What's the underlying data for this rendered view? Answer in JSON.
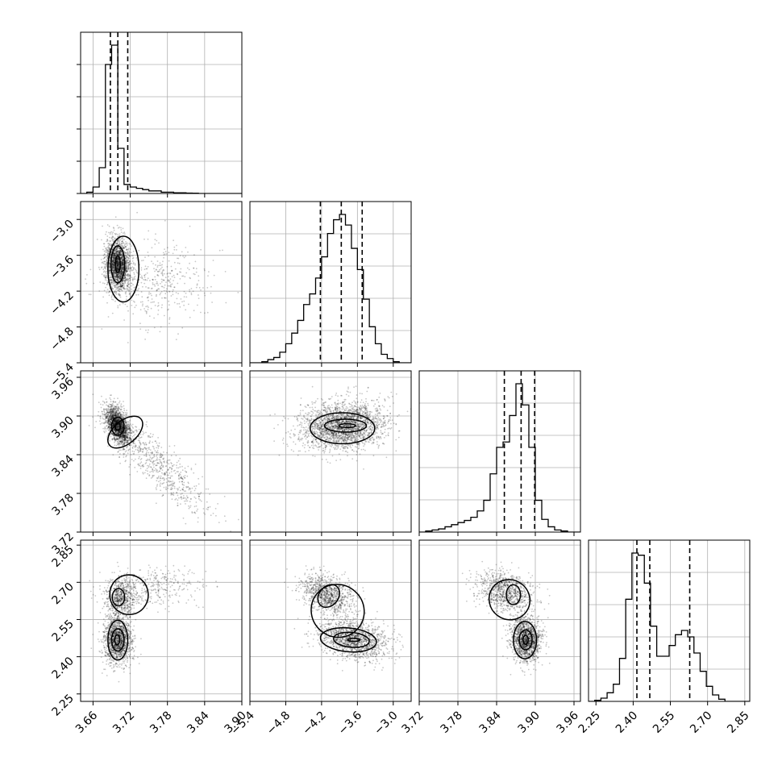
{
  "chart_data": {
    "type": "corner",
    "parameters": [
      {
        "lim": [
          3.64,
          3.9
        ],
        "ticks": [
          3.66,
          3.72,
          3.78,
          3.84,
          3.9
        ],
        "tick_labels": [
          "3.66",
          "3.72",
          "3.78",
          "3.84",
          "3.90"
        ]
      },
      {
        "lim": [
          -5.4,
          -2.7
        ],
        "ticks": [
          -5.4,
          -4.8,
          -4.2,
          -3.6,
          -3.0
        ],
        "tick_labels": [
          "−5.4",
          "−4.8",
          "−4.2",
          "−3.6",
          "−3.0"
        ]
      },
      {
        "lim": [
          3.72,
          3.97
        ],
        "ticks": [
          3.72,
          3.78,
          3.84,
          3.9,
          3.96
        ],
        "tick_labels": [
          "3.72",
          "3.78",
          "3.84",
          "3.90",
          "3.96"
        ]
      },
      {
        "lim": [
          2.22,
          2.87
        ],
        "ticks": [
          2.25,
          2.4,
          2.55,
          2.7,
          2.85
        ],
        "tick_labels": [
          "2.25",
          "2.40",
          "2.55",
          "2.70",
          "2.85"
        ]
      }
    ],
    "histograms": [
      {
        "bin_edges": [
          3.64,
          3.65,
          3.66,
          3.67,
          3.68,
          3.69,
          3.7,
          3.71,
          3.72,
          3.73,
          3.74,
          3.75,
          3.76,
          3.77,
          3.78,
          3.79,
          3.8,
          3.81,
          3.82,
          3.83,
          3.84,
          3.85,
          3.86,
          3.87,
          3.88,
          3.89,
          3.9
        ],
        "counts": [
          0,
          1,
          5,
          20,
          100,
          115,
          35,
          7,
          5,
          4,
          3,
          2,
          2,
          1,
          1,
          0.5,
          0.5,
          0.3,
          0.2,
          0,
          0,
          0,
          0,
          0,
          0,
          0
        ],
        "quantiles": [
          3.688,
          3.7,
          3.716
        ]
      },
      {
        "bin_edges": [
          -5.4,
          -5.3,
          -5.2,
          -5.1,
          -5.0,
          -4.9,
          -4.8,
          -4.7,
          -4.6,
          -4.5,
          -4.4,
          -4.3,
          -4.2,
          -4.1,
          -4.0,
          -3.9,
          -3.8,
          -3.7,
          -3.6,
          -3.5,
          -3.4,
          -3.3,
          -3.2,
          -3.1,
          -3.0,
          -2.9,
          -2.8,
          -2.7
        ],
        "counts": [
          0,
          0,
          1,
          3,
          5,
          10,
          18,
          28,
          40,
          55,
          65,
          80,
          100,
          122,
          135,
          140,
          130,
          108,
          88,
          60,
          34,
          18,
          8,
          4,
          1,
          0,
          0
        ],
        "quantiles": [
          -4.22,
          -3.87,
          -3.52
        ]
      },
      {
        "bin_edges": [
          3.72,
          3.73,
          3.74,
          3.75,
          3.76,
          3.77,
          3.78,
          3.79,
          3.8,
          3.81,
          3.82,
          3.83,
          3.84,
          3.85,
          3.86,
          3.87,
          3.88,
          3.89,
          3.9,
          3.91,
          3.92,
          3.93,
          3.94,
          3.95,
          3.96,
          3.97
        ],
        "counts": [
          0,
          1,
          2,
          3,
          5,
          7,
          9,
          11,
          14,
          20,
          30,
          55,
          80,
          85,
          110,
          140,
          120,
          80,
          30,
          12,
          5,
          2,
          1,
          0,
          0
        ],
        "quantiles": [
          3.852,
          3.878,
          3.899
        ]
      },
      {
        "bin_edges": [
          2.22,
          2.245,
          2.27,
          2.295,
          2.32,
          2.345,
          2.37,
          2.395,
          2.42,
          2.445,
          2.47,
          2.495,
          2.52,
          2.545,
          2.57,
          2.595,
          2.62,
          2.645,
          2.67,
          2.695,
          2.72,
          2.745,
          2.77,
          2.795,
          2.82,
          2.845,
          2.87
        ],
        "counts": [
          0,
          1,
          3,
          8,
          16,
          40,
          95,
          138,
          136,
          110,
          70,
          42,
          42,
          52,
          62,
          66,
          60,
          45,
          28,
          14,
          6,
          2,
          0,
          0,
          0,
          0
        ],
        "quantiles": [
          2.415,
          2.467,
          2.628
        ]
      }
    ],
    "pairs": [
      {
        "row": 1,
        "col": 0,
        "components": [
          {
            "mean": [
              3.7,
              -3.75
            ],
            "std": [
              0.01,
              0.22
            ],
            "corr": -0.1,
            "w": 0.8
          },
          {
            "mean": [
              3.76,
              -4.05
            ],
            "std": [
              0.045,
              0.35
            ],
            "corr": -0.1,
            "w": 0.2
          }
        ],
        "contours": [
          {
            "center": [
              3.7,
              -3.75
            ],
            "radii": [
              0.004,
              0.14
            ],
            "tilt": 0
          },
          {
            "center": [
              3.7,
              -3.75
            ],
            "radii": [
              0.011,
              0.31
            ],
            "tilt": 0
          },
          {
            "center": [
              3.709,
              -3.83
            ],
            "radii": [
              0.025,
              0.55
            ],
            "tilt": 0
          }
        ]
      },
      {
        "row": 2,
        "col": 0,
        "components": [
          {
            "mean": [
              3.7,
              3.885
            ],
            "std": [
              0.01,
              0.015
            ],
            "corr": -0.5,
            "w": 0.75
          },
          {
            "mean": [
              3.77,
              3.82
            ],
            "std": [
              0.04,
              0.035
            ],
            "corr": -0.85,
            "w": 0.25
          }
        ],
        "contours": [
          {
            "center": [
              3.7,
              3.884
            ],
            "radii": [
              0.004,
              0.006
            ],
            "tilt": 0
          },
          {
            "center": [
              3.7,
              3.884
            ],
            "radii": [
              0.01,
              0.014
            ],
            "tilt": 0
          },
          {
            "center": [
              3.712,
              3.875
            ],
            "radii": [
              0.033,
              0.018
            ],
            "tilt": 40
          }
        ]
      },
      {
        "row": 3,
        "col": 0,
        "components": [
          {
            "mean": [
              3.7,
              2.47
            ],
            "std": [
              0.011,
              0.05
            ],
            "corr": 0.0,
            "w": 0.6
          },
          {
            "mean": [
              3.705,
              2.64
            ],
            "std": [
              0.012,
              0.04
            ],
            "corr": 0.1,
            "w": 0.25
          },
          {
            "mean": [
              3.76,
              2.68
            ],
            "std": [
              0.04,
              0.04
            ],
            "corr": 0.2,
            "w": 0.15
          }
        ],
        "contours": [
          {
            "center": [
              3.699,
              2.468
            ],
            "radii": [
              0.004,
              0.02
            ],
            "tilt": 0
          },
          {
            "center": [
              3.7,
              2.468
            ],
            "radii": [
              0.01,
              0.045
            ],
            "tilt": 0
          },
          {
            "center": [
              3.7,
              2.467
            ],
            "radii": [
              0.016,
              0.08
            ],
            "tilt": 0
          },
          {
            "center": [
              3.701,
              2.64
            ],
            "radii": [
              0.01,
              0.035
            ],
            "tilt": 0
          },
          {
            "center": [
              3.718,
              2.65
            ],
            "radii": [
              0.031,
              0.08
            ],
            "tilt": 12
          }
        ]
      },
      {
        "row": 2,
        "col": 1,
        "components": [
          {
            "mean": [
              -3.85,
              3.885
            ],
            "std": [
              0.35,
              0.018
            ],
            "corr": 0.1,
            "w": 1.0
          }
        ],
        "contours": [
          {
            "center": [
              -3.77,
              3.885
            ],
            "radii": [
              0.14,
              0.003
            ],
            "tilt": 0
          },
          {
            "center": [
              -3.8,
              3.885
            ],
            "radii": [
              0.35,
              0.01
            ],
            "tilt": 0
          },
          {
            "center": [
              -3.85,
              3.881
            ],
            "radii": [
              0.54,
              0.024
            ],
            "tilt": 0
          }
        ]
      },
      {
        "row": 3,
        "col": 1,
        "components": [
          {
            "mean": [
              -3.65,
              2.47
            ],
            "std": [
              0.3,
              0.04
            ],
            "corr": -0.3,
            "w": 0.6
          },
          {
            "mean": [
              -4.1,
              2.65
            ],
            "std": [
              0.22,
              0.04
            ],
            "corr": -0.4,
            "w": 0.4
          }
        ],
        "contours": [
          {
            "center": [
              -3.66,
              2.468
            ],
            "radii": [
              0.1,
              0.006
            ],
            "tilt": 0
          },
          {
            "center": [
              -3.7,
              2.468
            ],
            "radii": [
              0.3,
              0.03
            ],
            "tilt": -5
          },
          {
            "center": [
              -3.75,
              2.468
            ],
            "radii": [
              0.47,
              0.048
            ],
            "tilt": -5
          },
          {
            "center": [
              -4.08,
              2.645
            ],
            "radii": [
              0.16,
              0.05
            ],
            "tilt": -40
          },
          {
            "center": [
              -3.93,
              2.585
            ],
            "radii": [
              0.45,
              0.105
            ],
            "tilt": -42
          }
        ]
      },
      {
        "row": 3,
        "col": 2,
        "components": [
          {
            "mean": [
              3.885,
              2.47
            ],
            "std": [
              0.012,
              0.045
            ],
            "corr": -0.1,
            "w": 0.6
          },
          {
            "mean": [
              3.855,
              2.66
            ],
            "std": [
              0.022,
              0.04
            ],
            "corr": -0.3,
            "w": 0.4
          }
        ],
        "contours": [
          {
            "center": [
              3.885,
              2.468
            ],
            "radii": [
              0.004,
              0.018
            ],
            "tilt": 0
          },
          {
            "center": [
              3.885,
              2.468
            ],
            "radii": [
              0.01,
              0.04
            ],
            "tilt": 0
          },
          {
            "center": [
              3.884,
              2.467
            ],
            "radii": [
              0.018,
              0.075
            ],
            "tilt": 0
          },
          {
            "center": [
              3.866,
              2.65
            ],
            "radii": [
              0.011,
              0.04
            ],
            "tilt": 0
          },
          {
            "center": [
              3.86,
              2.63
            ],
            "radii": [
              0.032,
              0.08
            ],
            "tilt": -35
          }
        ]
      }
    ]
  }
}
